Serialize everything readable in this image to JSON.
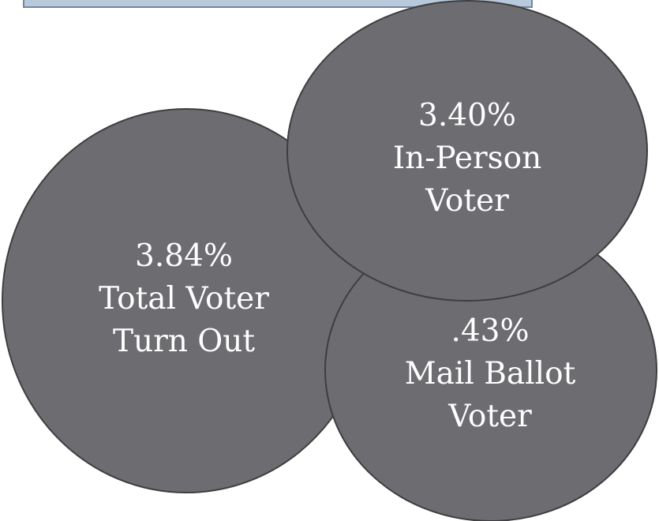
{
  "colors": {
    "bubble_fill": "#6d6c70",
    "bubble_stroke": "#3e3e40",
    "text": "#ffffff",
    "banner_fill": "#b8c9dc",
    "banner_stroke": "#6f86a2"
  },
  "bubbles": {
    "total": {
      "value": "3.84%",
      "line1": "Total Voter",
      "line2": "Turn Out"
    },
    "mail": {
      "value": ".43%",
      "line1": "Mail Ballot",
      "line2": "Voter"
    },
    "inperson": {
      "value": "3.40%",
      "line1": "In-Person",
      "line2": "Voter"
    }
  }
}
